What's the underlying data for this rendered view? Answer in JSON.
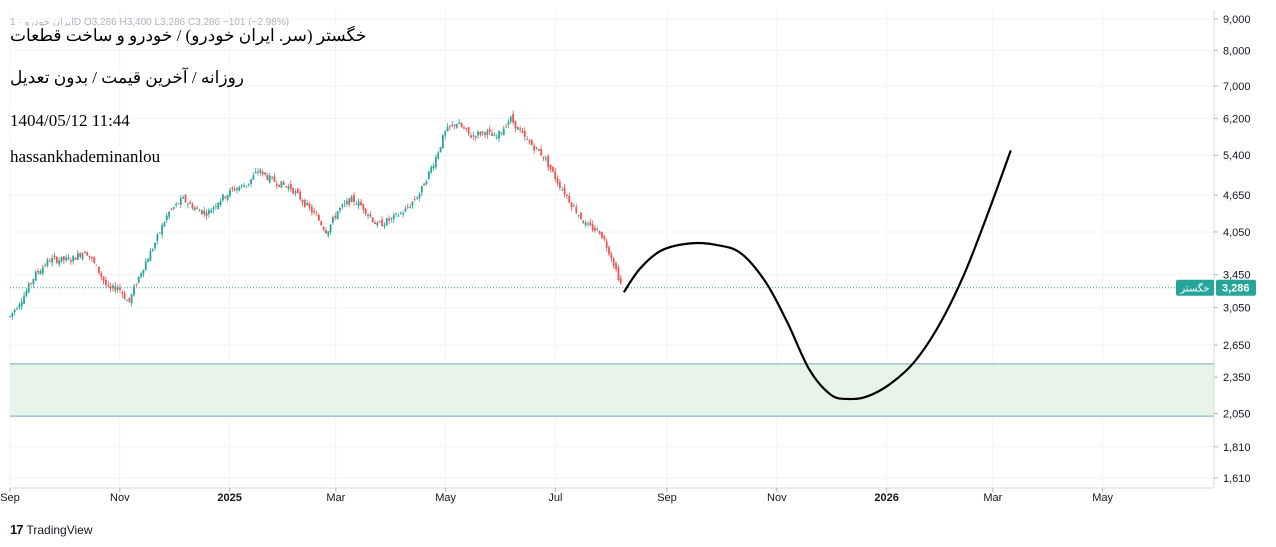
{
  "header": {
    "ohlc": "ایران خودرو · 1D   O3,286  H3,400  L3,286  C3,286  −101 (−2.98%)",
    "symbol_title": "خگستر (سر. ایران خودرو) / خودرو و ساخت قطعات",
    "subtitle": "روزانه / آخرین قیمت / بدون تعدیل",
    "datetime": "1404/05/12 11:44",
    "author": "hassankhademinanlou"
  },
  "colors": {
    "up": "#26a69a",
    "down": "#ef5350",
    "price_line": "#26a69a",
    "zone_fill": "#e6f4ea",
    "zone_border": "#6fa8b8",
    "projection": "#000000",
    "grid": "#f0f3fa"
  },
  "chart_data": {
    "type": "candlestick",
    "y_axis": {
      "scale": "log",
      "range": [
        1500,
        9500
      ],
      "ticks": [
        "9,000",
        "8,000",
        "7,000",
        "6,200",
        "5,400",
        "4,650",
        "4,050",
        "3,450",
        "3,050",
        "2,650",
        "2,350",
        "2,050",
        "1,810",
        "1,610"
      ]
    },
    "x_axis": {
      "ticks": [
        {
          "label": "Sep",
          "day": 0,
          "bold": false
        },
        {
          "label": "Nov",
          "day": 61,
          "bold": false
        },
        {
          "label": "2025",
          "day": 122,
          "bold": true
        },
        {
          "label": "Mar",
          "day": 181,
          "bold": false
        },
        {
          "label": "May",
          "day": 242,
          "bold": false
        },
        {
          "label": "Jul",
          "day": 303,
          "bold": false
        },
        {
          "label": "Sep",
          "day": 365,
          "bold": false
        },
        {
          "label": "Nov",
          "day": 426,
          "bold": false
        },
        {
          "label": "2026",
          "day": 487,
          "bold": true
        },
        {
          "label": "Mar",
          "day": 546,
          "bold": false
        },
        {
          "label": "May",
          "day": 607,
          "bold": false
        }
      ],
      "range_days": [
        0,
        665
      ]
    },
    "price_path": [
      [
        0,
        2950
      ],
      [
        8,
        3200
      ],
      [
        14,
        3450
      ],
      [
        22,
        3650
      ],
      [
        34,
        3650
      ],
      [
        42,
        3780
      ],
      [
        48,
        3550
      ],
      [
        55,
        3250
      ],
      [
        60,
        3300
      ],
      [
        66,
        3100
      ],
      [
        72,
        3450
      ],
      [
        80,
        3850
      ],
      [
        88,
        4350
      ],
      [
        96,
        4580
      ],
      [
        104,
        4400
      ],
      [
        110,
        4350
      ],
      [
        116,
        4560
      ],
      [
        124,
        4750
      ],
      [
        132,
        4850
      ],
      [
        138,
        5100
      ],
      [
        144,
        4950
      ],
      [
        150,
        4850
      ],
      [
        156,
        4780
      ],
      [
        164,
        4500
      ],
      [
        170,
        4300
      ],
      [
        176,
        4050
      ],
      [
        182,
        4380
      ],
      [
        190,
        4580
      ],
      [
        196,
        4450
      ],
      [
        204,
        4150
      ],
      [
        212,
        4250
      ],
      [
        220,
        4400
      ],
      [
        228,
        4700
      ],
      [
        236,
        5300
      ],
      [
        242,
        5900
      ],
      [
        248,
        6100
      ],
      [
        256,
        5800
      ],
      [
        264,
        5900
      ],
      [
        270,
        5750
      ],
      [
        278,
        6200
      ],
      [
        286,
        5750
      ],
      [
        296,
        5400
      ],
      [
        304,
        4900
      ],
      [
        312,
        4500
      ],
      [
        320,
        4150
      ],
      [
        328,
        4050
      ],
      [
        334,
        3700
      ],
      [
        340,
        3286
      ]
    ],
    "last_price": 3286,
    "last_price_label": "3,286",
    "symbol_tag": "خگستر",
    "support_zone": [
      2030,
      2470
    ],
    "projection_path": [
      [
        341,
        3230
      ],
      [
        350,
        3530
      ],
      [
        362,
        3780
      ],
      [
        378,
        3880
      ],
      [
        392,
        3860
      ],
      [
        406,
        3740
      ],
      [
        420,
        3350
      ],
      [
        432,
        2880
      ],
      [
        444,
        2420
      ],
      [
        456,
        2200
      ],
      [
        466,
        2165
      ],
      [
        476,
        2185
      ],
      [
        488,
        2280
      ],
      [
        502,
        2480
      ],
      [
        516,
        2850
      ],
      [
        530,
        3450
      ],
      [
        544,
        4400
      ],
      [
        556,
        5500
      ]
    ]
  },
  "footer": {
    "brand": "TradingView"
  }
}
